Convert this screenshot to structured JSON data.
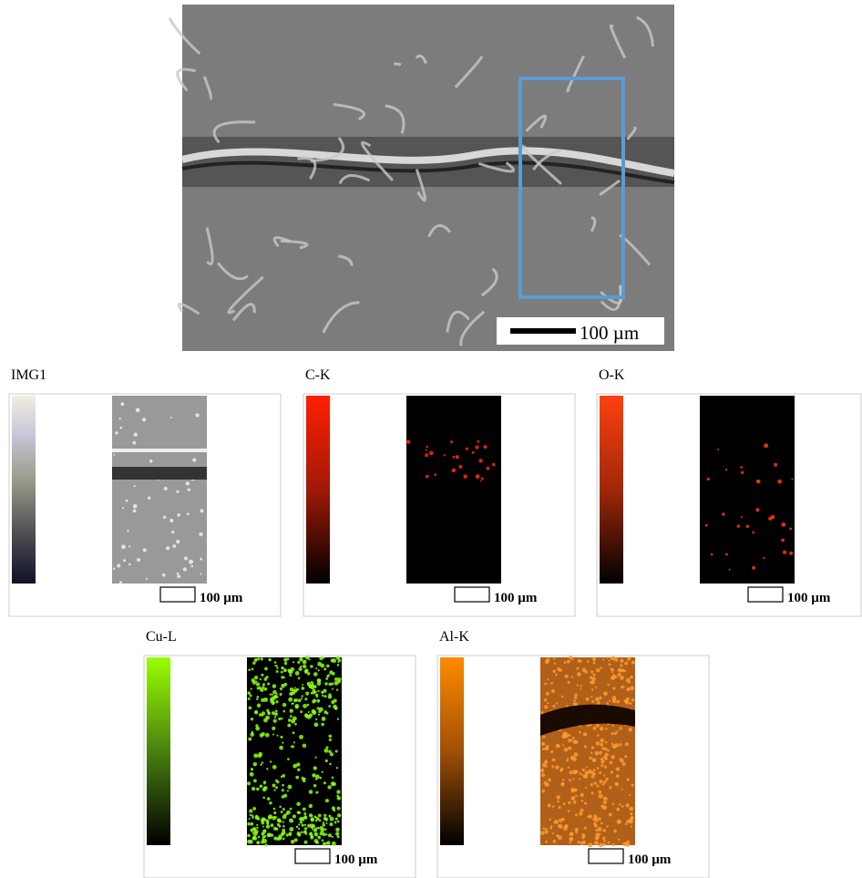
{
  "main_image": {
    "scale_label": "100 µm"
  },
  "panels": [
    {
      "label": "IMG1",
      "scale_label": "100 µm"
    },
    {
      "label": "C-K",
      "scale_label": "100 µm"
    },
    {
      "label": "O-K",
      "scale_label": "100 µm"
    },
    {
      "label": "Cu-L",
      "scale_label": "100 µm"
    },
    {
      "label": "Al-K",
      "scale_label": "100 µm"
    }
  ]
}
